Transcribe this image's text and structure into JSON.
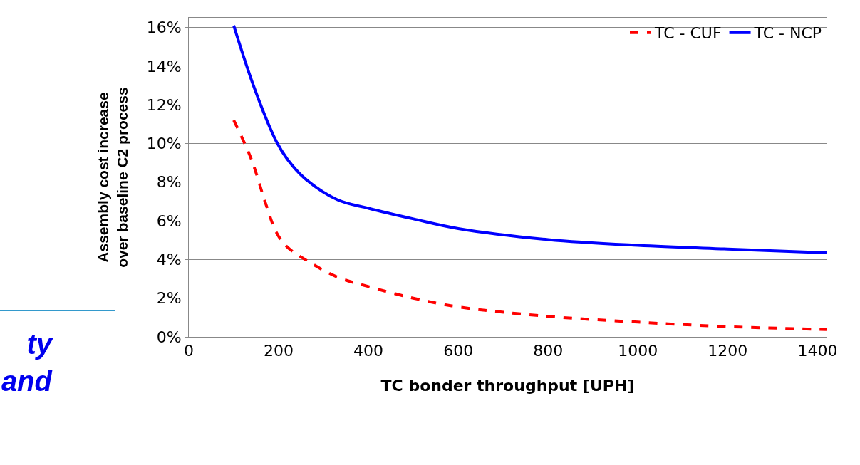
{
  "chart_data": {
    "type": "line",
    "xlabel": "TC bonder throughput [UPH]",
    "ylabel": "Assembly cost increase\nover baseline C2 process",
    "xlim": [
      0,
      1420
    ],
    "xticks": [
      0,
      200,
      400,
      600,
      800,
      1000,
      1200,
      1400
    ],
    "ylim": [
      0,
      0.165
    ],
    "yticks": [
      {
        "value": 0,
        "label": "0%"
      },
      {
        "value": 0.02,
        "label": "2%"
      },
      {
        "value": 0.04,
        "label": "4%"
      },
      {
        "value": 0.06,
        "label": "6%"
      },
      {
        "value": 0.08,
        "label": "8%"
      },
      {
        "value": 0.1,
        "label": "10%"
      },
      {
        "value": 0.12,
        "label": "12%"
      },
      {
        "value": 0.14,
        "label": "14%"
      },
      {
        "value": 0.16,
        "label": "16%"
      }
    ],
    "grid": "y",
    "legend": "top right",
    "series": [
      {
        "name": "TC - CUF",
        "color": "#ff0000",
        "line_style": "dashed",
        "x": [
          100,
          139,
          171,
          195,
          219,
          266,
          330,
          400,
          500,
          600,
          800,
          1000,
          1200,
          1420
        ],
        "values": [
          0.112,
          0.092,
          0.069,
          0.054,
          0.0465,
          0.039,
          0.031,
          0.026,
          0.02,
          0.0155,
          0.0106,
          0.0076,
          0.0053,
          0.0038
        ]
      },
      {
        "name": "TC - NCP",
        "color": "#0000ff",
        "line_style": "solid",
        "x": [
          100,
          147,
          195,
          219,
          258,
          330,
          400,
          500,
          600,
          800,
          1000,
          1200,
          1420
        ],
        "values": [
          0.161,
          0.128,
          0.101,
          0.092,
          0.082,
          0.071,
          0.0665,
          0.061,
          0.056,
          0.0503,
          0.0473,
          0.0454,
          0.0435
        ]
      }
    ],
    "annotations": [
      "ty",
      "and"
    ]
  }
}
